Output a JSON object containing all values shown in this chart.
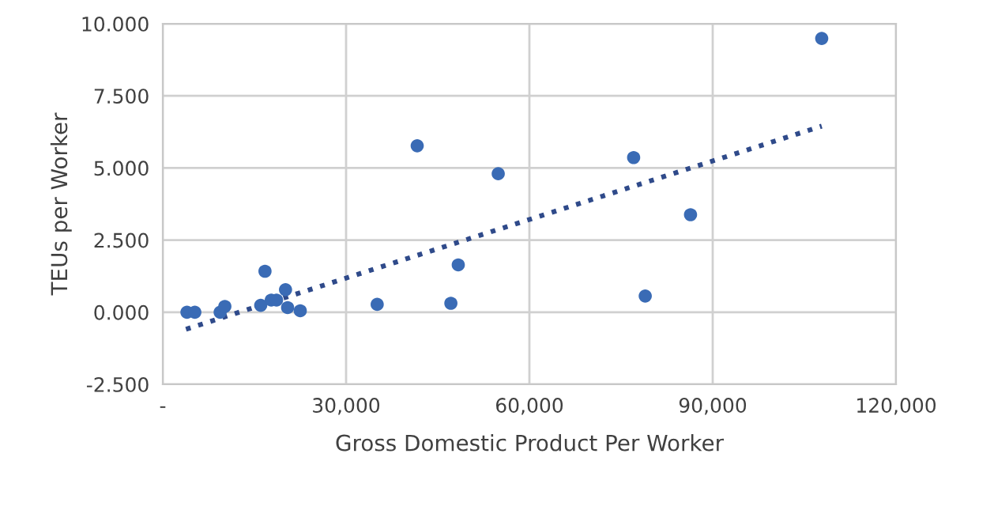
{
  "chart_data": {
    "type": "scatter",
    "xlabel": "Gross Domestic Product Per Worker",
    "ylabel": "TEUs per Worker",
    "series": [
      {
        "color": "#3a6bb5",
        "marker": "circle",
        "x": [
          3960,
          5250,
          9390,
          10160,
          16030,
          16730,
          17760,
          18620,
          20090,
          20430,
          22500,
          35090,
          41640,
          47150,
          48360,
          54900,
          77060,
          78960,
          86370,
          107840
        ],
        "values": [
          0.0,
          0.0,
          0.0,
          0.2,
          0.24,
          1.42,
          0.42,
          0.42,
          0.78,
          0.16,
          0.05,
          0.27,
          5.77,
          0.31,
          1.64,
          4.8,
          5.36,
          0.56,
          3.38,
          9.49
        ]
      },
      {
        "type": "line",
        "color": "#2f4a8a",
        "line_style": "dotted",
        "x": [
          3800,
          107840
        ],
        "values": [
          -0.59,
          6.45
        ]
      }
    ],
    "xlim": [
      0,
      120000
    ],
    "xticks": [
      {
        "value": 0,
        "label": "-"
      },
      {
        "value": 30000,
        "label": "30,000"
      },
      {
        "value": 60000,
        "label": "60,000"
      },
      {
        "value": 90000,
        "label": "90,000"
      },
      {
        "value": 120000,
        "label": "120,000"
      }
    ],
    "ylim": [
      -2.5,
      10
    ],
    "yticks": [
      {
        "value": -2.5,
        "label": "-2.500"
      },
      {
        "value": 0,
        "label": "0.000"
      },
      {
        "value": 2.5,
        "label": "2.500"
      },
      {
        "value": 5,
        "label": "5.000"
      },
      {
        "value": 7.5,
        "label": "7.500"
      },
      {
        "value": 10,
        "label": "10.000"
      }
    ],
    "grid": true,
    "legend": false
  }
}
